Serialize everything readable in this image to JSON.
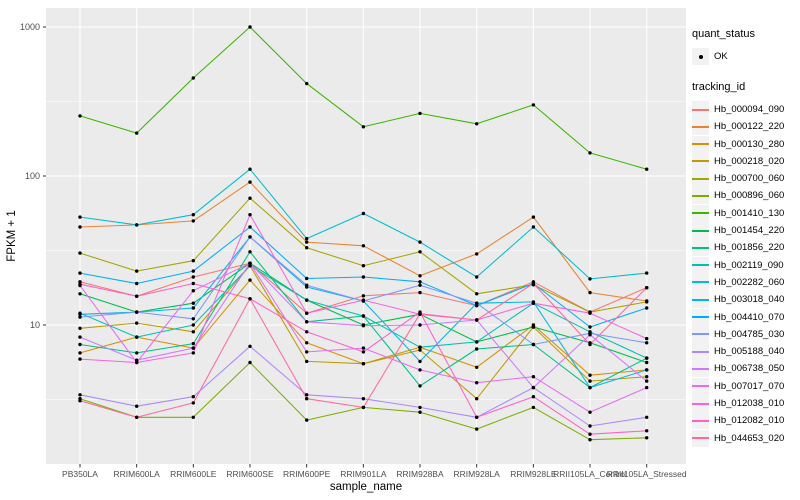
{
  "style_colors": {
    "figure_bg": "#FFFFFF",
    "panel_bg": "#EBEBEB",
    "grid": "#FFFFFF",
    "tick_text": "#4D4D4D",
    "axis_title_text": "#000000",
    "point": "#000000",
    "legend_key_bg": "#F2F2F2"
  },
  "legend": {
    "quant_status_title": "quant_status",
    "quant_status_items": [
      "OK"
    ],
    "tracking_id_title": "tracking_id"
  },
  "chart_data": {
    "type": "line",
    "title": "",
    "xlabel": "sample_name",
    "ylabel": "FPKM + 1",
    "x_scale": "categorical",
    "y_scale": "log10",
    "ylim": [
      1.2,
      1340
    ],
    "yticks": [
      10,
      100,
      1000
    ],
    "y_minor_gridlines": [
      3.162,
      31.623,
      316.228
    ],
    "grid": "on",
    "legend_position": "right",
    "point_marker": "small black point (quant_status OK)",
    "categories": [
      "PB350LA",
      "RRIM600LA",
      "RRIM600LE",
      "RRIM600SE",
      "RRIM600PE",
      "RRIM901LA",
      "RRIM928BA",
      "RRIM928LA",
      "RRIM928LE",
      "RRII105LA_Control",
      "RRII105LA_Stressed"
    ],
    "series": [
      {
        "name": "Hb_000094_090",
        "color": "#F8766D",
        "values": [
          19.5,
          15.6,
          21,
          26,
          12,
          15.7,
          16.5,
          13.5,
          19.5,
          12.2,
          17.8
        ]
      },
      {
        "name": "Hb_000122_220",
        "color": "#EA8331",
        "values": [
          45.5,
          47,
          50,
          91,
          36,
          34,
          21.4,
          30,
          53,
          16.5,
          14.5
        ]
      },
      {
        "name": "Hb_000130_280",
        "color": "#D89000",
        "values": [
          6.5,
          8.3,
          7.0,
          20,
          7.6,
          5.5,
          7.1,
          5.2,
          10,
          4.6,
          5.0
        ]
      },
      {
        "name": "Hb_000218_020",
        "color": "#C09B00",
        "values": [
          9.5,
          10.3,
          9.0,
          25,
          5.7,
          5.5,
          6.8,
          3.2,
          9.7,
          4.2,
          4.5
        ]
      },
      {
        "name": "Hb_000700_060",
        "color": "#A3A500",
        "values": [
          30.4,
          23,
          27,
          71,
          33,
          25,
          31,
          16.2,
          18.6,
          12.2,
          14.3
        ]
      },
      {
        "name": "Hb_000896_060",
        "color": "#7CAE00",
        "values": [
          3.2,
          2.4,
          2.4,
          5.6,
          2.3,
          2.8,
          2.6,
          2.0,
          2.8,
          1.7,
          1.75
        ]
      },
      {
        "name": "Hb_001410_130",
        "color": "#39B600",
        "values": [
          253,
          194,
          455,
          1000,
          417,
          214,
          263,
          224,
          300,
          143,
          111
        ]
      },
      {
        "name": "Hb_001454_220",
        "color": "#00BB4E",
        "values": [
          16.2,
          12.2,
          14,
          26,
          14.7,
          10,
          11.8,
          7.7,
          9.7,
          7.6,
          5.6
        ]
      },
      {
        "name": "Hb_001856_220",
        "color": "#00C087",
        "values": [
          7.4,
          6.5,
          7.5,
          31,
          10.5,
          11.5,
          3.9,
          6.9,
          7.4,
          3.8,
          6.0
        ]
      },
      {
        "name": "Hb_002119_090",
        "color": "#00C0B2",
        "values": [
          12.0,
          8.3,
          10,
          25,
          14.7,
          11.5,
          7.1,
          7.7,
          14,
          9.0,
          6.0
        ]
      },
      {
        "name": "Hb_002282_060",
        "color": "#00BDD2",
        "values": [
          53,
          47,
          55,
          111,
          38,
          56,
          36,
          21,
          45.5,
          20.4,
          22.3
        ]
      },
      {
        "name": "Hb_003018_040",
        "color": "#00B8E5",
        "values": [
          11.8,
          12.2,
          13,
          39,
          18,
          14.5,
          5.7,
          14,
          14.3,
          3.8,
          5.0
        ]
      },
      {
        "name": "Hb_004410_070",
        "color": "#00ACFC",
        "values": [
          22.3,
          19,
          23,
          45.5,
          20.5,
          21,
          19.5,
          13.5,
          19,
          9.7,
          13
        ]
      },
      {
        "name": "Hb_004785_030",
        "color": "#7F96FF",
        "values": [
          11.3,
          12.2,
          11,
          39,
          18.5,
          14.5,
          18.5,
          14,
          7.4,
          8.8,
          7.6
        ]
      },
      {
        "name": "Hb_005188_040",
        "color": "#AC88FF",
        "values": [
          3.4,
          2.85,
          3.3,
          7.2,
          3.4,
          3.2,
          2.8,
          2.4,
          3.8,
          2.1,
          2.4
        ]
      },
      {
        "name": "Hb_006738_050",
        "color": "#CF78FF",
        "values": [
          8.3,
          5.8,
          7.0,
          26,
          10.5,
          9.9,
          10,
          10.8,
          3.8,
          8.6,
          4.2
        ]
      },
      {
        "name": "Hb_007017_070",
        "color": "#E76BF3",
        "values": [
          18.4,
          5.6,
          17,
          26,
          6.6,
          7.0,
          5.0,
          4.1,
          4.5,
          2.6,
          3.8
        ]
      },
      {
        "name": "Hb_012038_010",
        "color": "#F763E0",
        "values": [
          5.9,
          5.6,
          6.5,
          55,
          12,
          14.7,
          11.8,
          10.8,
          14,
          12,
          8.1
        ]
      },
      {
        "name": "Hb_012082_010",
        "color": "#FF61C9",
        "values": [
          18.8,
          15.6,
          19,
          15,
          9.0,
          6.6,
          12.2,
          2.4,
          3.3,
          1.85,
          1.95
        ]
      },
      {
        "name": "Hb_044653_020",
        "color": "#FF689E",
        "values": [
          3.1,
          2.4,
          3.0,
          15,
          3.2,
          2.8,
          11.9,
          10.8,
          19,
          7.4,
          17.8
        ]
      }
    ]
  }
}
